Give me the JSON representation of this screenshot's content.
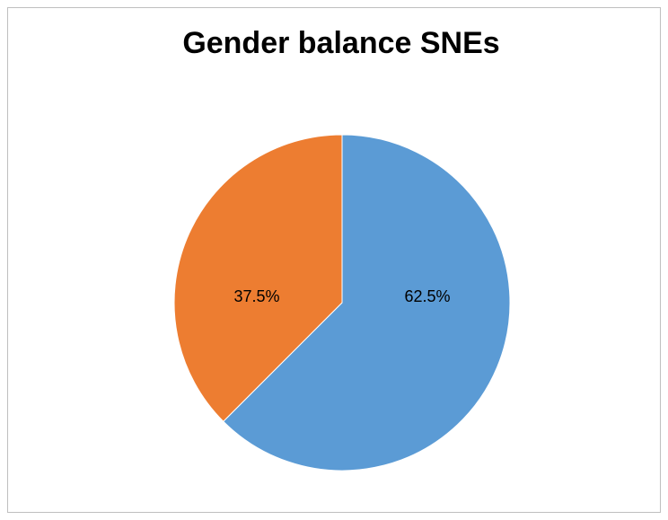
{
  "chart_data": {
    "type": "pie",
    "title": "Gender balance SNEs",
    "values": [
      62.5,
      37.5
    ],
    "value_labels": [
      "62.5%",
      "37.5%"
    ],
    "colors": [
      "#5b9bd5",
      "#ed7d31"
    ]
  }
}
